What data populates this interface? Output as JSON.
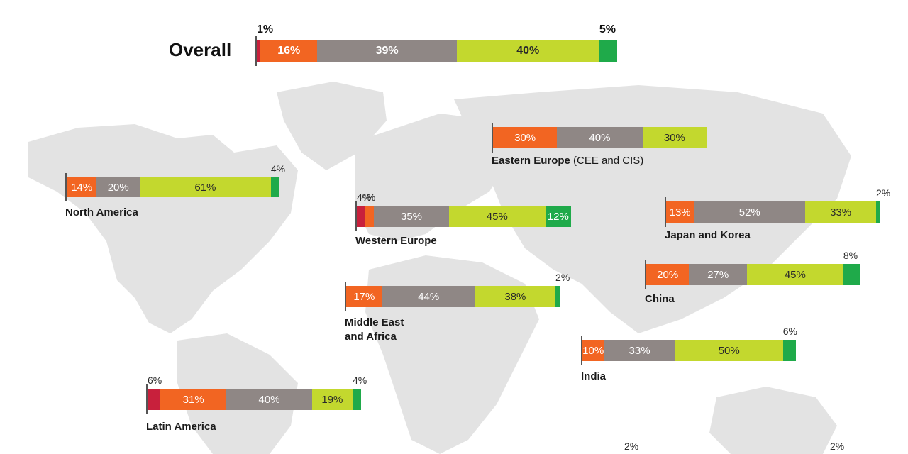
{
  "chart_data": {
    "type": "bar",
    "orientation": "horizontal",
    "stacked": true,
    "normalized": true,
    "colors": [
      "#c8203c",
      "#f26522",
      "#8f8785",
      "#c3d82e",
      "#1faa4a"
    ],
    "overall": {
      "label": "Overall",
      "values": [
        1,
        16,
        39,
        40,
        5
      ],
      "labels": [
        "1%",
        "16%",
        "39%",
        "40%",
        "5%"
      ]
    },
    "regions": [
      {
        "key": "eastern-europe",
        "name": "Eastern Europe",
        "sub": "(CEE and CIS)",
        "values": [
          0,
          30,
          40,
          30,
          0
        ],
        "labels": [
          "",
          "30%",
          "40%",
          "30%",
          ""
        ]
      },
      {
        "key": "north-america",
        "name": "North America",
        "sub": "",
        "values": [
          0,
          14,
          20,
          61,
          4
        ],
        "labels": [
          "",
          "14%",
          "20%",
          "61%",
          "4%"
        ]
      },
      {
        "key": "western-europe",
        "name": "Western Europe",
        "sub": "",
        "values": [
          4,
          4,
          35,
          45,
          12
        ],
        "labels": [
          "4%",
          "4%",
          "35%",
          "45%",
          "12%"
        ]
      },
      {
        "key": "japan-korea",
        "name": "Japan and Korea",
        "sub": "",
        "values": [
          0,
          13,
          52,
          33,
          2
        ],
        "labels": [
          "",
          "13%",
          "52%",
          "33%",
          "2%"
        ]
      },
      {
        "key": "china",
        "name": "China",
        "sub": "",
        "values": [
          0,
          20,
          27,
          45,
          8
        ],
        "labels": [
          "",
          "20%",
          "27%",
          "45%",
          "8%"
        ]
      },
      {
        "key": "mea",
        "name": "Middle East",
        "name2": "and Africa",
        "sub": "",
        "values": [
          0,
          17,
          44,
          38,
          2
        ],
        "labels": [
          "",
          "17%",
          "44%",
          "38%",
          "2%"
        ]
      },
      {
        "key": "india",
        "name": "India",
        "sub": "",
        "values": [
          0,
          10,
          33,
          50,
          6
        ],
        "labels": [
          "",
          "10%",
          "33%",
          "50%",
          "6%"
        ]
      },
      {
        "key": "latin-america",
        "name": "Latin America",
        "sub": "",
        "values": [
          6,
          31,
          40,
          19,
          4
        ],
        "labels": [
          "6%",
          "31%",
          "40%",
          "19%",
          "4%"
        ]
      }
    ],
    "partial_labels": [
      "2%",
      "2%"
    ]
  }
}
